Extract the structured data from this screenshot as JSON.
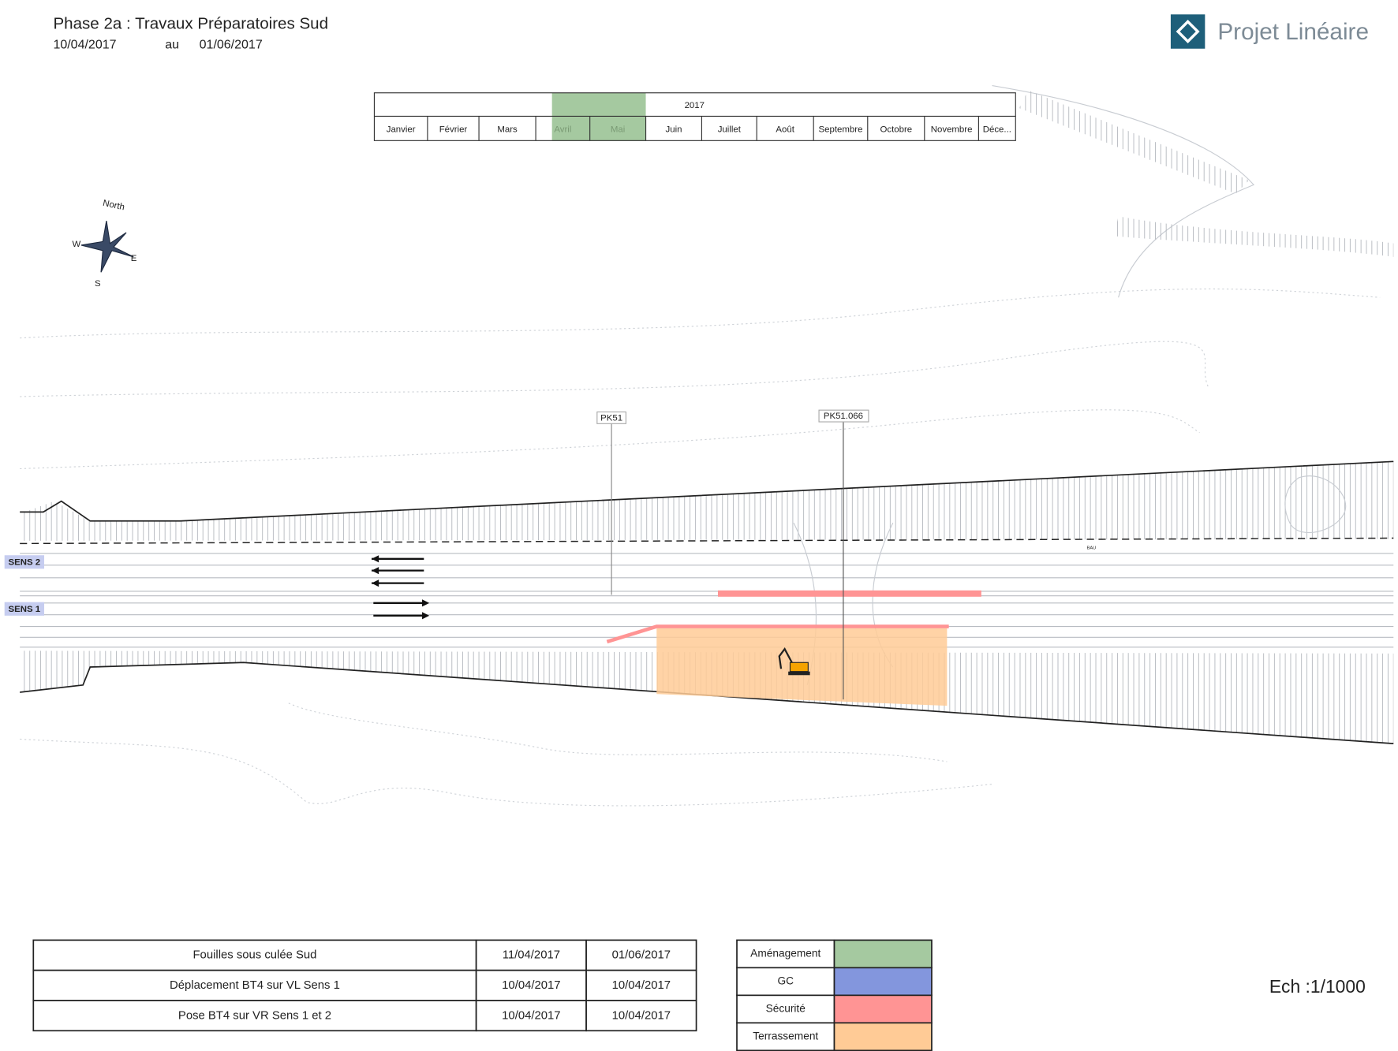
{
  "header": {
    "title": "Phase 2a : Travaux Préparatoires Sud",
    "start_date": "10/04/2017",
    "au": "au",
    "end_date": "01/06/2017"
  },
  "logo": {
    "text": "Projet Linéaire"
  },
  "timeline": {
    "year": "2017",
    "months": [
      "Janvier",
      "Février",
      "Mars",
      "Avril",
      "Mai",
      "Juin",
      "Juillet",
      "Août",
      "Septembre",
      "Octobre",
      "Novembre",
      "Déce..."
    ],
    "highlight_color": "#a5c9a0"
  },
  "compass": {
    "north": "North",
    "west": "W",
    "east": "E",
    "south": "S"
  },
  "map": {
    "pk_labels": [
      "PK51",
      "PK51.066"
    ],
    "lanes": [
      "SENS 2",
      "SENS 1"
    ],
    "bau": "BAU"
  },
  "tasks": {
    "rows": [
      [
        "Fouilles sous culée Sud",
        "11/04/2017",
        "01/06/2017"
      ],
      [
        "Déplacement BT4 sur VL Sens 1",
        "10/04/2017",
        "10/04/2017"
      ],
      [
        "Pose BT4 sur VR Sens 1 et 2",
        "10/04/2017",
        "10/04/2017"
      ]
    ]
  },
  "legend": {
    "items": [
      {
        "label": "Aménagement",
        "color": "#a5c9a0"
      },
      {
        "label": "GC",
        "color": "#8396dd"
      },
      {
        "label": "Sécurité",
        "color": "#ff9494"
      },
      {
        "label": "Terrassement",
        "color": "#ffcb96"
      }
    ]
  },
  "scale": {
    "text": "Ech :1/1000"
  }
}
